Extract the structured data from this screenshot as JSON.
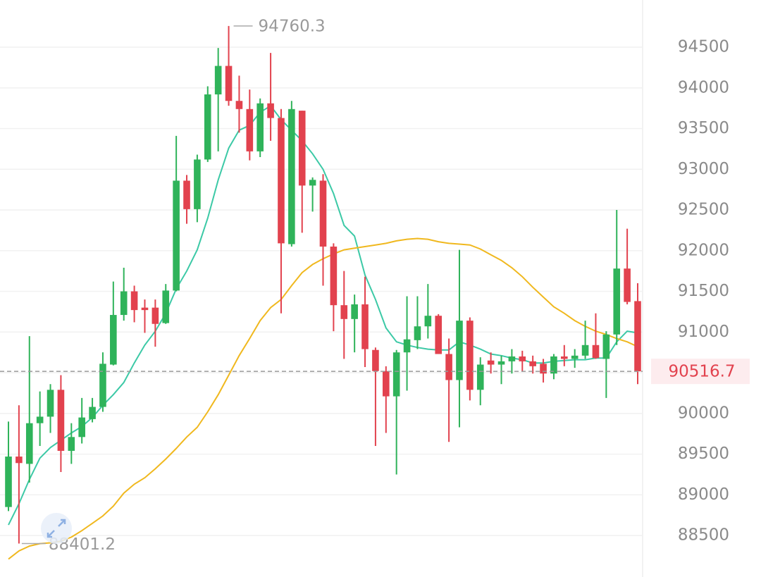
{
  "chart_data": {
    "type": "candlestick",
    "up_color": "#2fb35a",
    "down_color": "#e2424e",
    "open": [
      88850,
      89470,
      89380,
      89880,
      89960,
      90290,
      89540,
      89710,
      89930,
      90080,
      90600,
      91210,
      91500,
      91300,
      91300,
      91110,
      91510,
      92860,
      92510,
      93120,
      93920,
      94270,
      93840,
      93740,
      93220,
      93810,
      93630,
      92080,
      93720,
      92800,
      92860,
      92050,
      91330,
      91160,
      91340,
      90780,
      90520,
      90210,
      90750,
      90900,
      91070,
      91200,
      90730,
      90410,
      91140,
      90290,
      90650,
      90600,
      90640,
      90700,
      90640,
      90610,
      90490,
      90700,
      90670,
      90710,
      90840,
      90670,
      90970,
      91780,
      91380
    ],
    "high": [
      89900,
      90100,
      90950,
      90270,
      90360,
      90470,
      89880,
      90190,
      90190,
      90750,
      91620,
      91790,
      91570,
      91400,
      91400,
      91590,
      93410,
      92930,
      93180,
      94020,
      94490,
      94760.3,
      94150,
      93980,
      93870,
      94430,
      93740,
      93840,
      93720,
      92900,
      92940,
      92090,
      91750,
      91460,
      91680,
      90810,
      90580,
      90780,
      91440,
      91440,
      91590,
      91220,
      90920,
      92010,
      91180,
      90690,
      90750,
      90710,
      90790,
      90770,
      90710,
      90670,
      90730,
      90840,
      90790,
      91140,
      91230,
      91010,
      92500,
      92270,
      91600
    ],
    "low": [
      88800,
      88401.2,
      89150,
      89600,
      89760,
      89280,
      89380,
      89630,
      89890,
      90020,
      90590,
      91140,
      91120,
      90990,
      90820,
      91100,
      91500,
      92330,
      92350,
      93090,
      93220,
      93780,
      93450,
      93110,
      93150,
      93350,
      91230,
      92050,
      92220,
      92480,
      91570,
      91010,
      90670,
      90750,
      90570,
      89600,
      89760,
      89250,
      90280,
      90790,
      90920,
      90730,
      89650,
      89830,
      90160,
      90100,
      90490,
      90360,
      90490,
      90520,
      90490,
      90380,
      90420,
      90580,
      90560,
      90670,
      90670,
      90190,
      90840,
      91340,
      90360
    ],
    "close": [
      89470,
      89390,
      89880,
      89960,
      90290,
      89540,
      89710,
      89950,
      90080,
      90610,
      91210,
      91500,
      91270,
      91270,
      91100,
      91510,
      92860,
      92510,
      93120,
      93920,
      94270,
      93840,
      93740,
      93220,
      93810,
      93630,
      92090,
      93740,
      92800,
      92870,
      92050,
      91330,
      91160,
      91340,
      90790,
      90520,
      90210,
      90750,
      90910,
      91070,
      91200,
      90730,
      90410,
      91140,
      90290,
      90600,
      90600,
      90640,
      90700,
      90640,
      90580,
      90490,
      90700,
      90670,
      90710,
      90840,
      90680,
      90970,
      91780,
      91370,
      90516.7
    ],
    "lines": [
      {
        "color": "#3cc9a6",
        "values": [
          88630,
          88890,
          89190,
          89450,
          89580,
          89670,
          89760,
          89840,
          89950,
          90100,
          90230,
          90380,
          90620,
          90840,
          91010,
          91230,
          91530,
          91750,
          92010,
          92400,
          92870,
          93260,
          93480,
          93540,
          93700,
          93780,
          93610,
          93480,
          93350,
          93190,
          93000,
          92700,
          92310,
          92180,
          91700,
          91400,
          91050,
          90880,
          90840,
          90810,
          90790,
          90780,
          90780,
          90880,
          90840,
          90790,
          90730,
          90710,
          90680,
          90660,
          90620,
          90620,
          90640,
          90650,
          90660,
          90660,
          90680,
          90680,
          90880,
          91010,
          90990
        ]
      },
      {
        "color": "#f0b81e",
        "values": [
          88210,
          88310,
          88370,
          88400,
          88410,
          88430,
          88480,
          88560,
          88650,
          88740,
          88860,
          89020,
          89130,
          89210,
          89320,
          89440,
          89570,
          89710,
          89830,
          90020,
          90230,
          90470,
          90710,
          90920,
          91140,
          91300,
          91400,
          91570,
          91730,
          91830,
          91900,
          91960,
          92010,
          92030,
          92050,
          92070,
          92090,
          92120,
          92140,
          92150,
          92140,
          92110,
          92090,
          92080,
          92070,
          92020,
          91950,
          91880,
          91790,
          91680,
          91550,
          91430,
          91310,
          91230,
          91140,
          91070,
          91010,
          90970,
          90920,
          90880,
          90820
        ]
      }
    ],
    "ylim": [
      87990,
      95080
    ],
    "yticks": [
      88500,
      89000,
      89500,
      90000,
      90500,
      91000,
      91500,
      92000,
      92500,
      93000,
      93500,
      94000,
      94500
    ],
    "grid": true
  }
}
